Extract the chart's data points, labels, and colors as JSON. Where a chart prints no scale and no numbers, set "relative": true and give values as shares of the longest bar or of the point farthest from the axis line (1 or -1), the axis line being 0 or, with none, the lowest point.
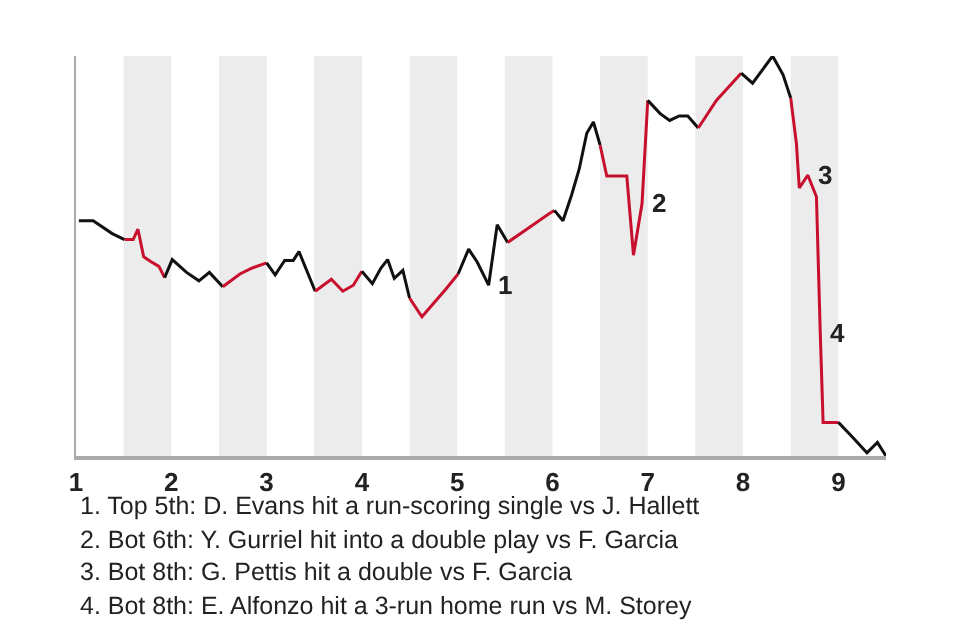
{
  "chart_data": {
    "type": "line",
    "relative": true,
    "series": [
      {
        "color": "#111111",
        "x": [
          1.03,
          1.18,
          1.38,
          1.51
        ],
        "values": [
          0.588,
          0.588,
          0.556,
          0.541
        ]
      },
      {
        "color": "#c8102e",
        "x": [
          1.51,
          1.6,
          1.65,
          1.71,
          1.78,
          1.87,
          1.93
        ],
        "values": [
          0.541,
          0.541,
          0.567,
          0.498,
          0.487,
          0.474,
          0.446
        ]
      },
      {
        "color": "#111111",
        "x": [
          1.93,
          2.01,
          2.16,
          2.29,
          2.4,
          2.54
        ],
        "values": [
          0.446,
          0.491,
          0.459,
          0.438,
          0.459,
          0.423
        ]
      },
      {
        "color": "#c8102e",
        "x": [
          2.54,
          2.72,
          2.85,
          3.0
        ],
        "values": [
          0.423,
          0.455,
          0.47,
          0.483
        ]
      },
      {
        "color": "#111111",
        "x": [
          3.0,
          3.09,
          3.19,
          3.28,
          3.34,
          3.51
        ],
        "values": [
          0.483,
          0.453,
          0.489,
          0.489,
          0.511,
          0.412
        ]
      },
      {
        "color": "#c8102e",
        "x": [
          3.51,
          3.68,
          3.8,
          3.91,
          4.0
        ],
        "values": [
          0.412,
          0.442,
          0.412,
          0.427,
          0.462
        ]
      },
      {
        "color": "#111111",
        "x": [
          4.0,
          4.11,
          4.2,
          4.27,
          4.34,
          4.43,
          4.5
        ],
        "values": [
          0.462,
          0.431,
          0.47,
          0.491,
          0.444,
          0.464,
          0.395
        ]
      },
      {
        "color": "#c8102e",
        "x": [
          4.5,
          4.63,
          4.76,
          4.88,
          5.01
        ],
        "values": [
          0.395,
          0.348,
          0.384,
          0.417,
          0.455
        ]
      },
      {
        "color": "#111111",
        "x": [
          5.01,
          5.12,
          5.21,
          5.33,
          5.42,
          5.53
        ],
        "values": [
          0.455,
          0.517,
          0.485,
          0.427,
          0.578,
          0.534
        ]
      },
      {
        "color": "#c8102e",
        "x": [
          5.53,
          5.73,
          5.96,
          6.02
        ],
        "values": [
          0.534,
          0.567,
          0.605,
          0.614
        ]
      },
      {
        "color": "#111111",
        "x": [
          6.02,
          6.11,
          6.2,
          6.28,
          6.36,
          6.43,
          6.5
        ],
        "values": [
          0.614,
          0.588,
          0.652,
          0.717,
          0.807,
          0.835,
          0.777
        ]
      },
      {
        "color": "#c8102e",
        "x": [
          6.5,
          6.57,
          6.64,
          6.72,
          6.78,
          6.85,
          6.94,
          7.0
        ],
        "values": [
          0.777,
          0.7,
          0.7,
          0.7,
          0.7,
          0.502,
          0.631,
          0.889
        ]
      },
      {
        "color": "#111111",
        "x": [
          7.0,
          7.13,
          7.23,
          7.33,
          7.42,
          7.53
        ],
        "values": [
          0.889,
          0.856,
          0.839,
          0.85,
          0.85,
          0.82
        ]
      },
      {
        "color": "#c8102e",
        "x": [
          7.53,
          7.72,
          7.98
        ],
        "values": [
          0.82,
          0.889,
          0.957
        ]
      },
      {
        "color": "#111111",
        "x": [
          7.98,
          8.1,
          8.31,
          8.42,
          8.5
        ],
        "values": [
          0.957,
          0.932,
          1.0,
          0.953,
          0.895
        ]
      },
      {
        "color": "#c8102e",
        "x": [
          8.5,
          8.56,
          8.59,
          8.68,
          8.77,
          8.81,
          8.84,
          8.92,
          9.0
        ],
        "values": [
          0.895,
          0.781,
          0.67,
          0.702,
          0.648,
          0.309,
          0.084,
          0.084,
          0.084
        ]
      },
      {
        "color": "#111111",
        "x": [
          9.0,
          9.13,
          9.3,
          9.41,
          9.5
        ],
        "values": [
          0.084,
          0.052,
          0.008,
          0.034,
          0.0
        ]
      }
    ],
    "xlim": [
      1,
      9.5
    ],
    "xticks": [
      1,
      2,
      3,
      4,
      5,
      6,
      7,
      8,
      9
    ],
    "bands": [
      {
        "axis": "x",
        "from": 1.5,
        "to": 2,
        "color": "#ececec"
      },
      {
        "axis": "x",
        "from": 2.5,
        "to": 3,
        "color": "#ececec"
      },
      {
        "axis": "x",
        "from": 3.5,
        "to": 4,
        "color": "#ececec"
      },
      {
        "axis": "x",
        "from": 4.5,
        "to": 5,
        "color": "#ececec"
      },
      {
        "axis": "x",
        "from": 5.5,
        "to": 6,
        "color": "#ececec"
      },
      {
        "axis": "x",
        "from": 6.5,
        "to": 7,
        "color": "#ececec"
      },
      {
        "axis": "x",
        "from": 7.5,
        "to": 8,
        "color": "#ececec"
      },
      {
        "axis": "x",
        "from": 8.5,
        "to": 9,
        "color": "#ececec"
      }
    ],
    "annotations": [
      {
        "text": "1",
        "x": 5.33,
        "y": 0.427
      },
      {
        "text": "2",
        "x": 6.94,
        "y": 0.631
      },
      {
        "text": "3",
        "x": 8.68,
        "y": 0.702
      },
      {
        "text": "4",
        "x": 8.81,
        "y": 0.309
      },
      "1. Top 5th: D. Evans hit a run-scoring single vs J. Hallett",
      "2. Bot 6th: Y. Gurriel hit into a double play vs F. Garcia",
      "3. Bot 8th: G. Pettis hit a double vs F. Garcia",
      "4. Bot 8th: E. Alfonzo hit a 3-run home run vs M. Storey"
    ],
    "grid": false,
    "marker": "none",
    "line_style": "solid"
  }
}
